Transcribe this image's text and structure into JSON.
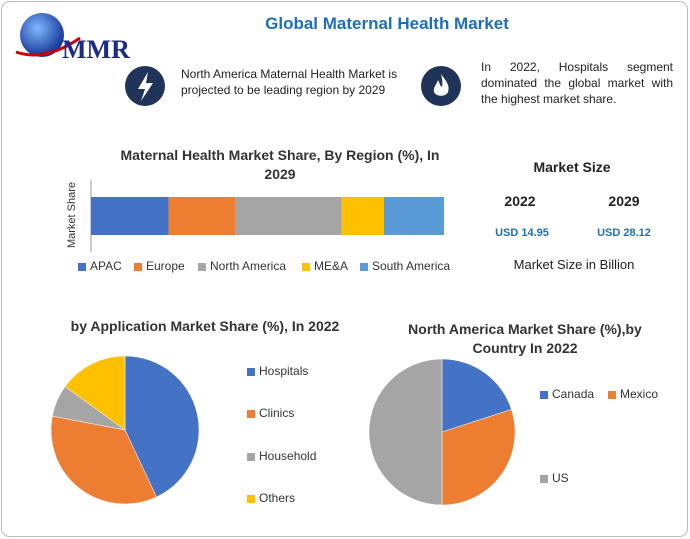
{
  "header": {
    "logo": "MMR",
    "title": "Global Maternal Health Market"
  },
  "highlights": [
    "North America Maternal Health Market is projected to be leading region by 2029",
    "In 2022, Hospitals segment dominated the global market with the highest market share."
  ],
  "market_size": {
    "title": "Market Size",
    "years": [
      "2022",
      "2029"
    ],
    "values": [
      "USD 14.95",
      "USD 28.12"
    ],
    "note": "Market Size in Billion"
  },
  "chart_data": [
    {
      "type": "bar",
      "orientation": "horizontal",
      "stacked": true,
      "title": "Maternal Health Market Share, By Region (%), In 2029",
      "y_label": "Market Share",
      "categories": [
        null
      ],
      "xlim": [
        0,
        100
      ],
      "series": [
        {
          "name": "APAC",
          "color": "#4472c4",
          "values": [
            22
          ]
        },
        {
          "name": "Europe",
          "color": "#ed7d31",
          "values": [
            19
          ]
        },
        {
          "name": "North America",
          "color": "#a5a5a5",
          "values": [
            30
          ]
        },
        {
          "name": "ME&A",
          "color": "#ffc000",
          "values": [
            12
          ]
        },
        {
          "name": "South America",
          "color": "#5b9bd5",
          "values": [
            17
          ]
        }
      ]
    },
    {
      "type": "pie",
      "title": "by Application Market Share (%), In 2022",
      "categories": [
        "Hospitals",
        "Clinics",
        "Household",
        "Others"
      ],
      "values": [
        43,
        35,
        7,
        15
      ],
      "colors": [
        "#4472c4",
        "#ed7d31",
        "#a5a5a5",
        "#ffc000"
      ]
    },
    {
      "type": "pie",
      "title": "North America Market Share (%),by Country In 2022",
      "categories": [
        "Canada",
        "Mexico",
        "US"
      ],
      "values": [
        20,
        30,
        50
      ],
      "colors": [
        "#4472c4",
        "#ed7d31",
        "#a5a5a5"
      ]
    }
  ]
}
